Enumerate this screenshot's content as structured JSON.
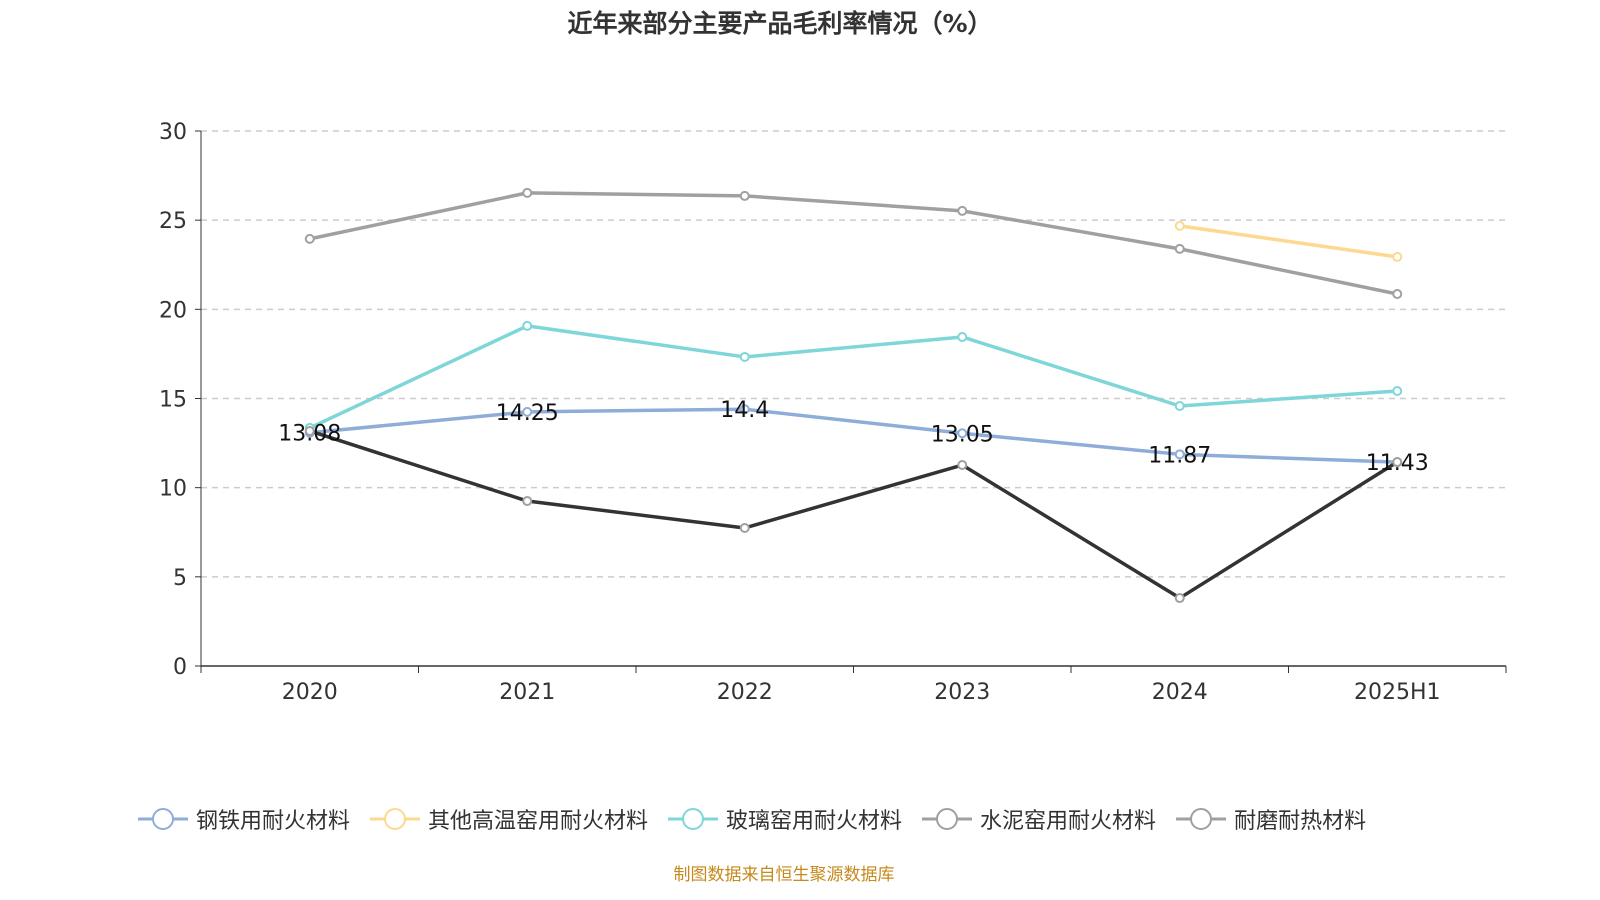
{
  "chart_data": {
    "type": "line",
    "title": "近年来部分主要产品毛利率情况（%）",
    "categories": [
      "2020",
      "2021",
      "2022",
      "2023",
      "2024",
      "2025H1"
    ],
    "ylim": [
      0,
      30
    ],
    "yticks": [
      0,
      5,
      10,
      15,
      20,
      25,
      30
    ],
    "grid": true,
    "legend_position": "bottom",
    "series": [
      {
        "name": "钢铁用耐火材料",
        "color": "#8fadd9",
        "marker": "#8fadd9",
        "values": [
          13.08,
          14.25,
          14.4,
          13.05,
          11.87,
          11.43
        ],
        "labels": [
          "13.08",
          "14.25",
          "14.4",
          "13.05",
          "11.87",
          "11.43"
        ]
      },
      {
        "name": "其他高温窑用耐火材料",
        "color": "#fcd98e",
        "marker": "#fcd98e",
        "values": [
          null,
          null,
          null,
          null,
          24.68,
          22.94
        ]
      },
      {
        "name": "玻璃窑用耐火材料",
        "color": "#7fd6d8",
        "marker": "#7fd6d8",
        "values": [
          13.35,
          19.07,
          17.33,
          18.45,
          14.58,
          15.42
        ]
      },
      {
        "name": "水泥窑用耐火材料",
        "color": "#a0a0a0",
        "marker": "#a0a0a0",
        "values": [
          23.95,
          26.53,
          26.36,
          25.52,
          23.39,
          20.86
        ]
      },
      {
        "name": "耐磨耐热材料",
        "color": "#333333",
        "marker": "#a0a0a0",
        "legend_color": "#a0a0a0",
        "values": [
          13.18,
          9.25,
          7.74,
          11.27,
          3.81,
          11.44
        ]
      }
    ]
  },
  "source": "制图数据来自恒生聚源数据库"
}
